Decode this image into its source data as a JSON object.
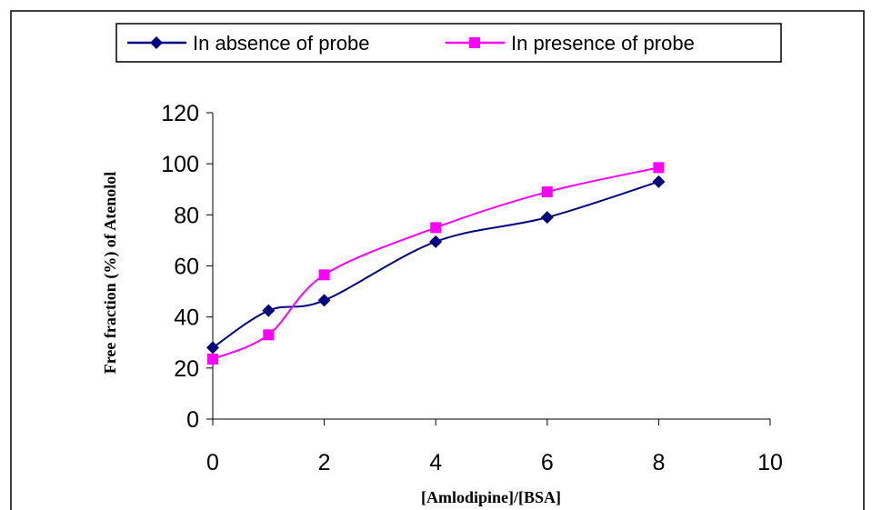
{
  "chart_data": {
    "type": "line",
    "title": "",
    "xlabel": "[Amlodipine]/[BSA]",
    "ylabel": "Free fraction (%) of Atenolol",
    "xlim": [
      0,
      10
    ],
    "ylim": [
      0,
      120
    ],
    "x_ticks": [
      0,
      2,
      4,
      6,
      8,
      10
    ],
    "y_ticks": [
      0,
      20,
      40,
      60,
      80,
      100,
      120
    ],
    "x_tick_labels": [
      "0",
      "2",
      "4",
      "6",
      "8",
      "10"
    ],
    "y_tick_labels": [
      "0",
      "20",
      "40",
      "60",
      "80",
      "100",
      "120"
    ],
    "grid": false,
    "legend_position": "top",
    "series": [
      {
        "name": "In absence of probe",
        "color": "#000080",
        "marker": "diamond",
        "x": [
          0,
          1,
          2,
          4,
          6,
          8
        ],
        "y": [
          28,
          42.5,
          46.5,
          69.5,
          79,
          93
        ]
      },
      {
        "name": "In presence of probe",
        "color": "#FF00FF",
        "marker": "square",
        "x": [
          0,
          1,
          2,
          4,
          6,
          8
        ],
        "y": [
          23.5,
          33,
          56.5,
          75,
          89,
          98.5
        ]
      }
    ]
  }
}
